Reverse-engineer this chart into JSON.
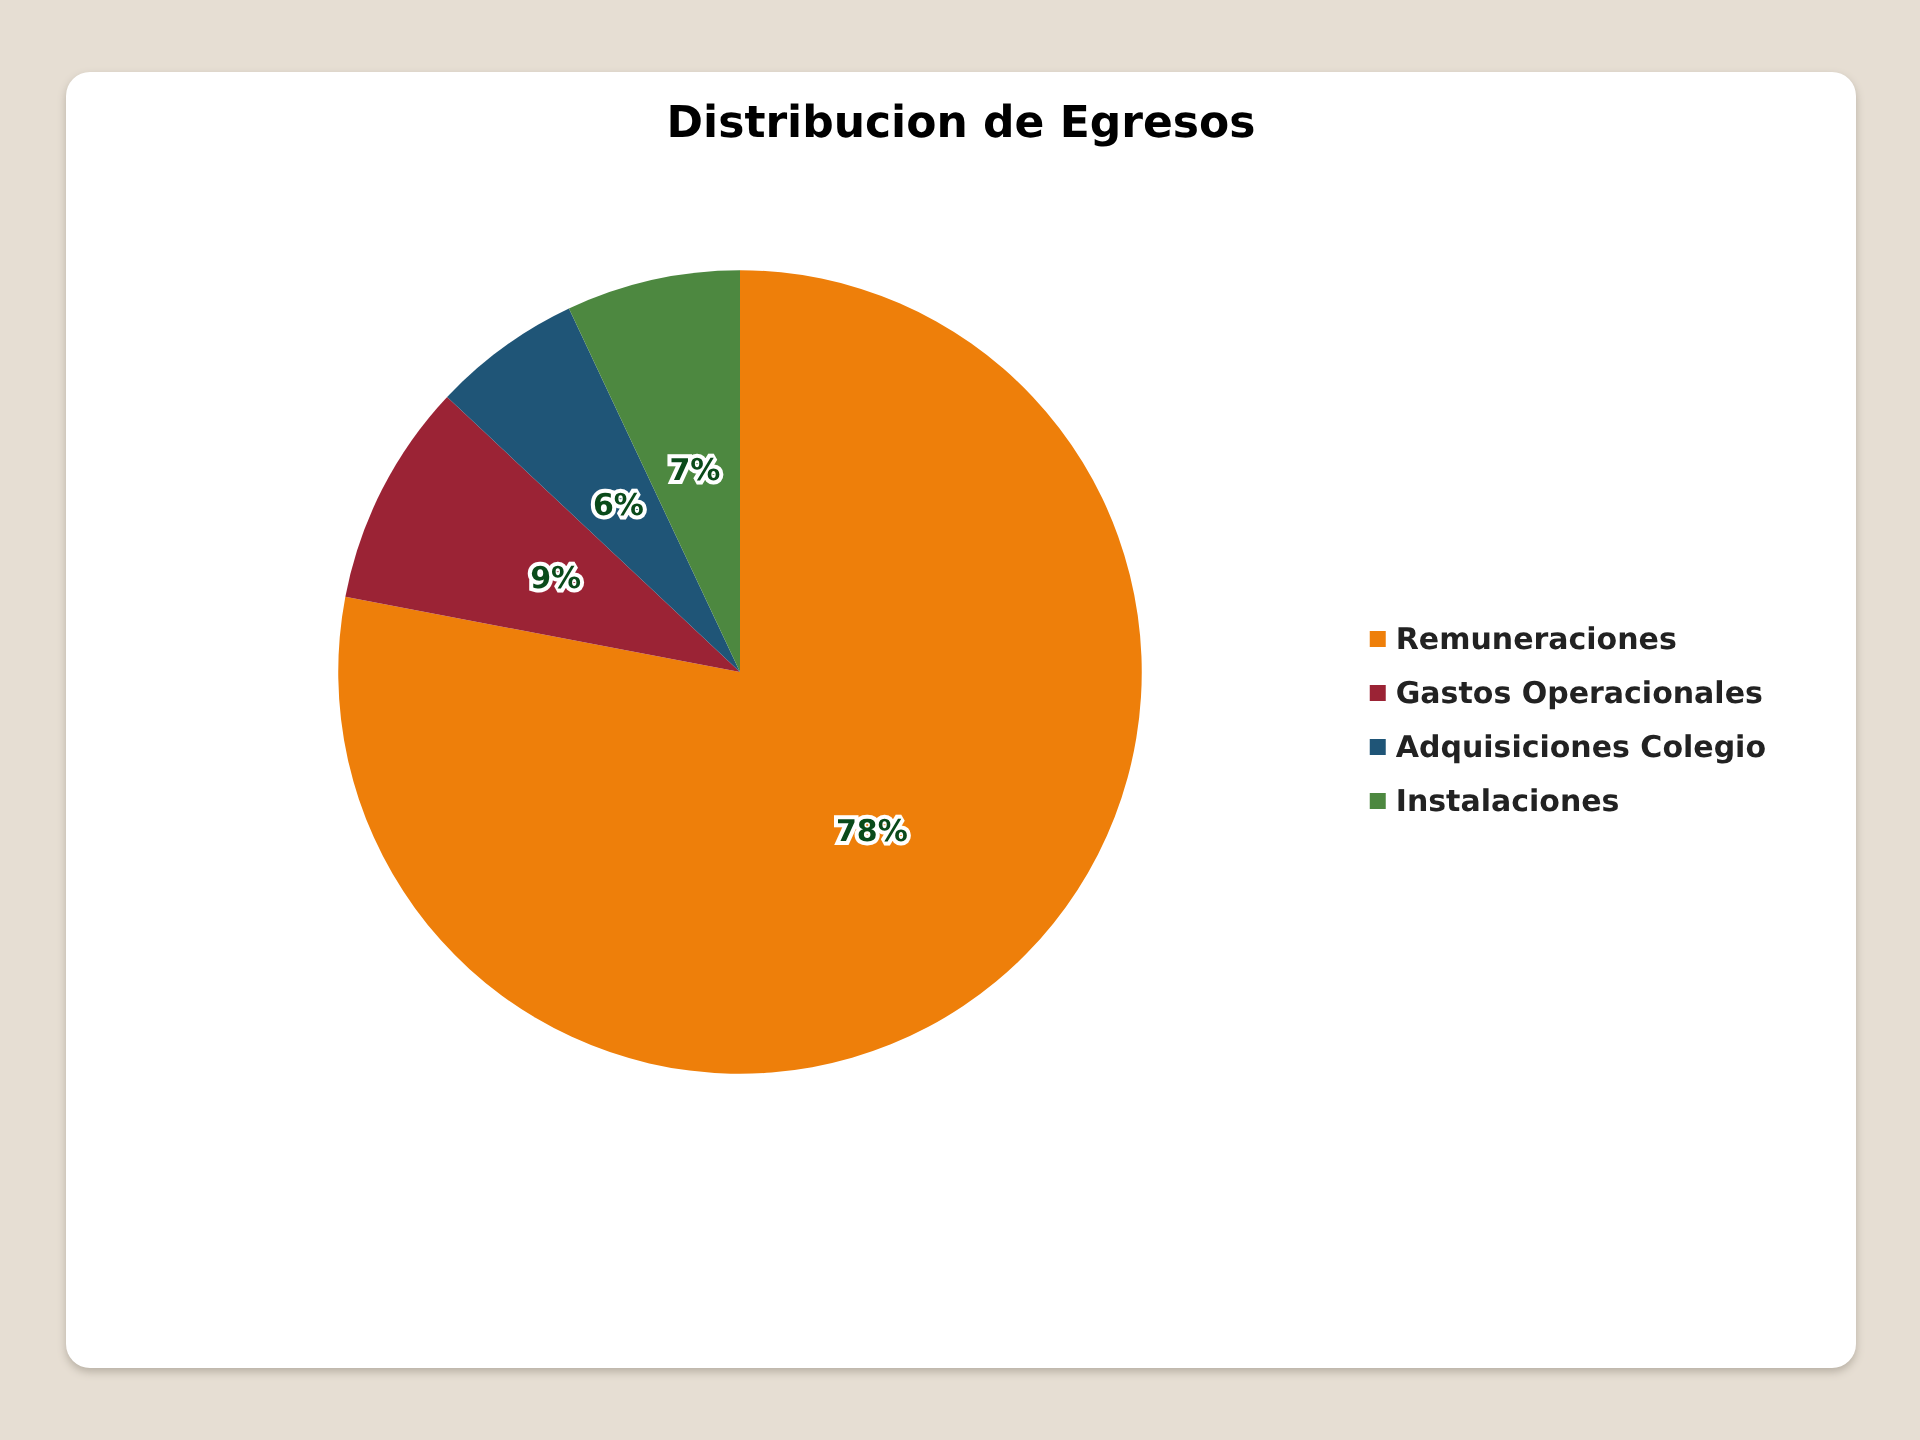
{
  "chart_data": {
    "type": "pie",
    "title": "Distribucion de Egresos",
    "categories": [
      "Remuneraciones",
      "Gastos Operacionales",
      "Adquisiciones Colegio",
      "Instalaciones"
    ],
    "values": [
      78,
      9,
      6,
      7
    ],
    "colors": [
      "#ee7f0a",
      "#9b2335",
      "#1f5577",
      "#4d8840"
    ],
    "value_labels": [
      "78%",
      "9%",
      "6%",
      "7%"
    ],
    "legend": "right"
  }
}
